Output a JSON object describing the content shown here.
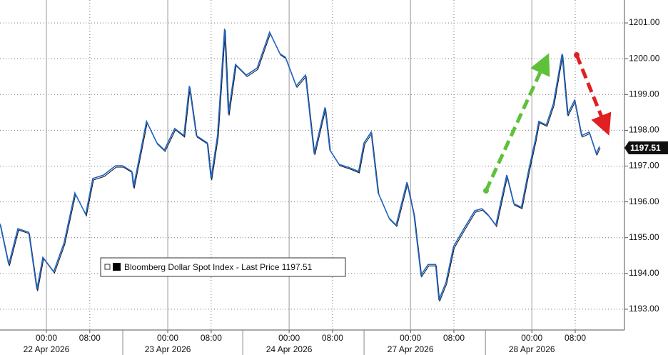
{
  "chart_data": {
    "type": "line",
    "xlim": [
      0,
      115.1
    ],
    "ylim": [
      1192.42,
      1201.64
    ],
    "grid": true,
    "xticks": [
      {
        "value": 8.55,
        "label": "00:00"
      },
      {
        "value": 16.55,
        "label": "08:00"
      },
      {
        "value": 30.92,
        "label": "00:00"
      },
      {
        "value": 38.92,
        "label": "08:00"
      },
      {
        "value": 53.29,
        "label": "00:00"
      },
      {
        "value": 61.29,
        "label": "08:00"
      },
      {
        "value": 75.66,
        "label": "00:00"
      },
      {
        "value": 83.66,
        "label": "08:00"
      },
      {
        "value": 98.03,
        "label": "00:00"
      },
      {
        "value": 106.03,
        "label": "08:00"
      }
    ],
    "date_ticks": [
      {
        "value": 8.55,
        "label": "22 Apr 2026"
      },
      {
        "value": 30.92,
        "label": "23 Apr 2026"
      },
      {
        "value": 53.29,
        "label": "24 Apr 2026"
      },
      {
        "value": 75.66,
        "label": "27 Apr 2026"
      },
      {
        "value": 98.03,
        "label": "28 Apr 2026"
      }
    ],
    "day_breaks": [
      22.63,
      44.74,
      67.1,
      89.47
    ],
    "yticks": [
      {
        "value": 1193,
        "label": "1193.00"
      },
      {
        "value": 1194,
        "label": "1194.00"
      },
      {
        "value": 1195,
        "label": "1195.00"
      },
      {
        "value": 1196,
        "label": "1196.00"
      },
      {
        "value": 1197,
        "label": "1197.00"
      },
      {
        "value": 1198,
        "label": "1198.00"
      },
      {
        "value": 1199,
        "label": "1199.00"
      },
      {
        "value": 1200,
        "label": "1200.00"
      },
      {
        "value": 1201,
        "label": "1201.00"
      }
    ],
    "last_price": 1197.51,
    "series": [
      {
        "name": "Bloomberg Dollar Spot Index - Last Price",
        "color": "#1f64c8",
        "x": [
          0,
          1.6,
          3.3,
          5.3,
          6.8,
          7.9,
          9.9,
          11.8,
          13.8,
          15.8,
          17.1,
          19.1,
          21.3,
          22.6,
          24.3,
          24.6,
          27,
          28.9,
          30.3,
          32.2,
          33.9,
          34.9,
          36.2,
          38.2,
          38.9,
          40.1,
          41.4,
          42.1,
          43.4,
          45.4,
          47.4,
          49.7,
          51.6,
          52.6,
          54.6,
          56.3,
          57.9,
          59.9,
          60.8,
          62.5,
          64.5,
          66.1,
          67.1,
          68.4,
          69.7,
          71.7,
          73,
          75,
          76.3,
          77.6,
          78.9,
          80.3,
          80.9,
          82.2,
          83.6,
          85.5,
          87.5,
          88.8,
          89.9,
          91.4,
          93.4,
          94.7,
          96.1,
          97.4,
          98.7,
          99.3,
          100.7,
          102,
          103.6,
          104.6,
          105.9,
          107.2,
          108.6,
          109.9,
          110.5
        ],
        "values": [
          1195.39,
          1194.25,
          1195.25,
          1195.15,
          1193.55,
          1194.45,
          1194.05,
          1194.85,
          1196.25,
          1195.65,
          1196.65,
          1196.75,
          1197.01,
          1197.01,
          1196.85,
          1196.41,
          1198.25,
          1197.65,
          1197.45,
          1198.05,
          1197.85,
          1199.24,
          1197.85,
          1197.65,
          1196.65,
          1197.85,
          1200.84,
          1198.45,
          1199.84,
          1199.54,
          1199.74,
          1200.74,
          1200.14,
          1200.04,
          1199.24,
          1199.54,
          1197.35,
          1198.64,
          1197.45,
          1197.05,
          1196.95,
          1196.85,
          1197.65,
          1197.95,
          1196.25,
          1195.55,
          1195.35,
          1196.55,
          1195.65,
          1193.95,
          1194.25,
          1194.25,
          1193.26,
          1193.75,
          1194.75,
          1195.25,
          1195.75,
          1195.81,
          1195.65,
          1195.35,
          1196.75,
          1195.95,
          1195.85,
          1196.85,
          1197.75,
          1198.25,
          1198.15,
          1198.74,
          1200.14,
          1198.45,
          1198.84,
          1197.85,
          1197.95,
          1197.35,
          1197.55
        ]
      }
    ]
  }
}
